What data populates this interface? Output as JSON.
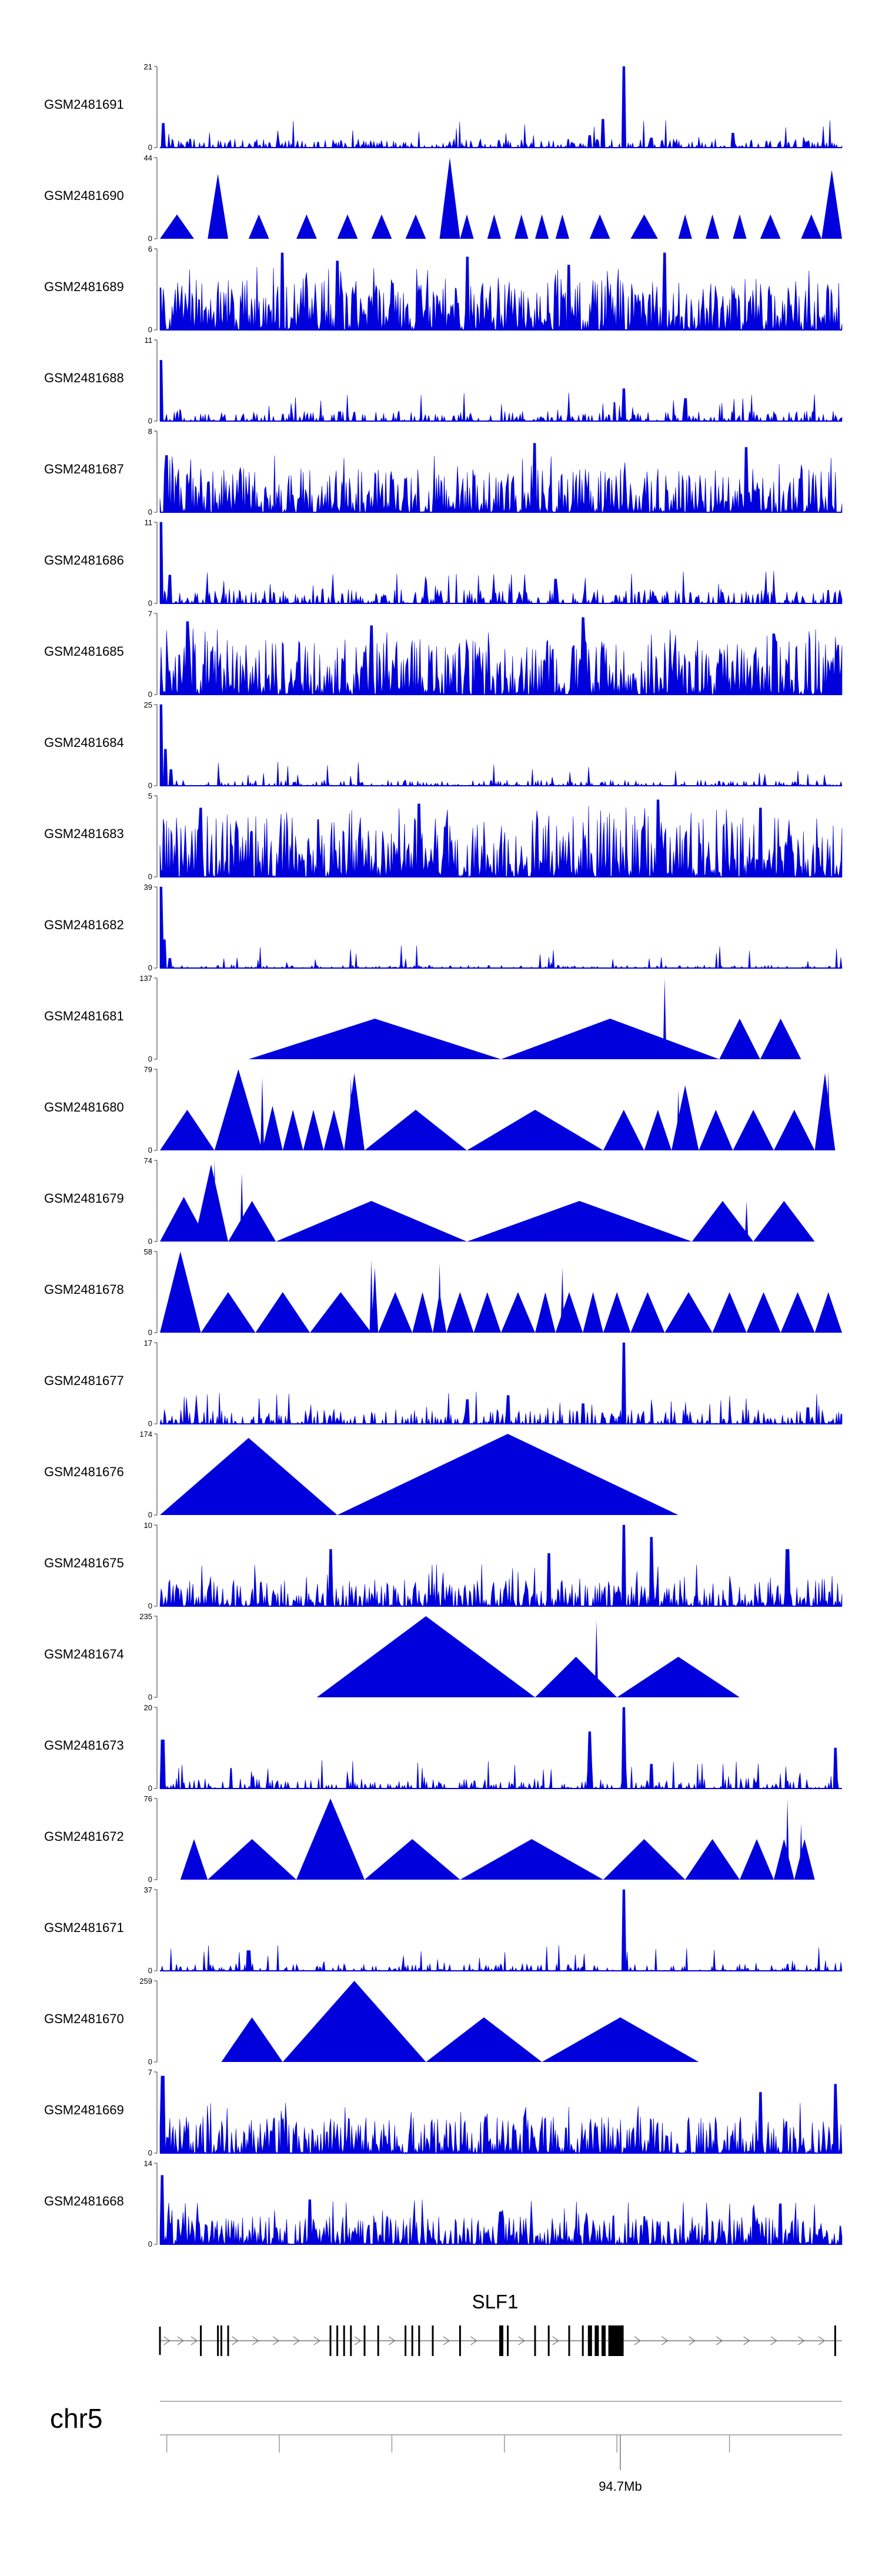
{
  "chart_data": {
    "type": "area",
    "title": "",
    "chromosome": "chr5",
    "gene": "SLF1",
    "axis_tick_label": "94.7Mb",
    "x_range": [
      0,
      1
    ],
    "fill_color": "#0000dd",
    "tracks": [
      {
        "name": "GSM2481691",
        "ymax": 21,
        "ymin": 0,
        "style": "dense",
        "seed": 11,
        "density": 0.55,
        "base": 0.06,
        "peaks": [
          [
            0.005,
            0.3
          ],
          [
            0.65,
            0.35
          ],
          [
            0.63,
            0.15
          ],
          [
            0.68,
            1.0
          ],
          [
            0.72,
            0.12
          ],
          [
            0.84,
            0.18
          ]
        ]
      },
      {
        "name": "GSM2481690",
        "ymax": 44,
        "ymin": 0,
        "style": "sparse",
        "seed": 12,
        "tri": [
          [
            0.0,
            0.05,
            0.3
          ],
          [
            0.07,
            0.1,
            0.8
          ],
          [
            0.13,
            0.16,
            0.3
          ],
          [
            0.2,
            0.23,
            0.3
          ],
          [
            0.26,
            0.29,
            0.3
          ],
          [
            0.31,
            0.34,
            0.3
          ],
          [
            0.36,
            0.39,
            0.3
          ],
          [
            0.41,
            0.44,
            1.0
          ],
          [
            0.44,
            0.46,
            0.3
          ],
          [
            0.48,
            0.5,
            0.3
          ],
          [
            0.52,
            0.54,
            0.3
          ],
          [
            0.55,
            0.57,
            0.3
          ],
          [
            0.58,
            0.6,
            0.3
          ],
          [
            0.63,
            0.66,
            0.3
          ],
          [
            0.69,
            0.73,
            0.3
          ],
          [
            0.76,
            0.78,
            0.3
          ],
          [
            0.8,
            0.82,
            0.3
          ],
          [
            0.84,
            0.86,
            0.3
          ],
          [
            0.88,
            0.91,
            0.3
          ],
          [
            0.94,
            0.97,
            0.3
          ],
          [
            0.97,
            1.0,
            0.85
          ]
        ]
      },
      {
        "name": "GSM2481689",
        "ymax": 6,
        "ymin": 0,
        "style": "dense",
        "seed": 13,
        "density": 0.9,
        "base": 0.35,
        "peaks": [
          [
            0.18,
            0.95
          ],
          [
            0.26,
            0.85
          ],
          [
            0.45,
            0.9
          ],
          [
            0.6,
            0.8
          ],
          [
            0.74,
            0.95
          ]
        ]
      },
      {
        "name": "GSM2481688",
        "ymax": 11,
        "ymin": 0,
        "style": "dense",
        "seed": 14,
        "density": 0.5,
        "base": 0.07,
        "peaks": [
          [
            0.002,
            0.75
          ],
          [
            0.68,
            0.4
          ],
          [
            0.77,
            0.28
          ]
        ]
      },
      {
        "name": "GSM2481687",
        "ymax": 8,
        "ymin": 0,
        "style": "dense",
        "seed": 15,
        "density": 0.85,
        "base": 0.3,
        "peaks": [
          [
            0.01,
            0.7
          ],
          [
            0.55,
            0.85
          ],
          [
            0.86,
            0.8
          ]
        ]
      },
      {
        "name": "GSM2481686",
        "ymax": 11,
        "ymin": 0,
        "style": "dense",
        "seed": 16,
        "density": 0.55,
        "base": 0.1,
        "peaks": [
          [
            0.002,
            1.0
          ],
          [
            0.015,
            0.35
          ],
          [
            0.58,
            0.3
          ]
        ]
      },
      {
        "name": "GSM2481685",
        "ymax": 7,
        "ymin": 0,
        "style": "dense",
        "seed": 17,
        "density": 0.9,
        "base": 0.38,
        "peaks": [
          [
            0.04,
            0.9
          ],
          [
            0.31,
            0.85
          ],
          [
            0.62,
            0.95
          ],
          [
            0.9,
            0.75
          ]
        ]
      },
      {
        "name": "GSM2481684",
        "ymax": 25,
        "ymin": 0,
        "style": "dense",
        "seed": 18,
        "density": 0.45,
        "base": 0.04,
        "peaks": [
          [
            0.002,
            1.0
          ],
          [
            0.008,
            0.45
          ],
          [
            0.016,
            0.2
          ]
        ]
      },
      {
        "name": "GSM2481683",
        "ymax": 5,
        "ymin": 0,
        "style": "dense",
        "seed": 19,
        "density": 0.9,
        "base": 0.42,
        "peaks": [
          [
            0.06,
            0.85
          ],
          [
            0.38,
            0.9
          ],
          [
            0.73,
            0.95
          ],
          [
            0.88,
            0.85
          ]
        ]
      },
      {
        "name": "GSM2481682",
        "ymax": 39,
        "ymin": 0,
        "style": "dense",
        "seed": 20,
        "density": 0.35,
        "base": 0.02,
        "peaks": [
          [
            0.002,
            1.0
          ],
          [
            0.007,
            0.35
          ],
          [
            0.014,
            0.12
          ]
        ]
      },
      {
        "name": "GSM2481681",
        "ymax": 137,
        "ymin": 0,
        "style": "sparse",
        "seed": 21,
        "tri": [
          [
            0.13,
            0.5,
            0.5
          ],
          [
            0.5,
            0.82,
            0.5
          ],
          [
            0.82,
            0.88,
            0.5
          ],
          [
            0.88,
            0.94,
            0.5
          ]
        ],
        "spikes": [
          [
            0.74,
            1.0
          ]
        ]
      },
      {
        "name": "GSM2481680",
        "ymax": 79,
        "ymin": 0,
        "style": "sparse",
        "seed": 22,
        "tri": [
          [
            0.0,
            0.08,
            0.5
          ],
          [
            0.08,
            0.15,
            1.0
          ],
          [
            0.15,
            0.18,
            0.55
          ],
          [
            0.18,
            0.21,
            0.5
          ],
          [
            0.21,
            0.24,
            0.5
          ],
          [
            0.24,
            0.27,
            0.5
          ],
          [
            0.27,
            0.3,
            0.95
          ],
          [
            0.3,
            0.45,
            0.5
          ],
          [
            0.45,
            0.65,
            0.5
          ],
          [
            0.65,
            0.71,
            0.5
          ],
          [
            0.71,
            0.75,
            0.5
          ],
          [
            0.75,
            0.79,
            0.8
          ],
          [
            0.79,
            0.84,
            0.5
          ],
          [
            0.84,
            0.9,
            0.5
          ],
          [
            0.9,
            0.96,
            0.5
          ],
          [
            0.96,
            0.99,
            0.95
          ]
        ],
        "spikes": [
          [
            0.15,
            0.9
          ],
          [
            0.28,
            0.9
          ],
          [
            0.76,
            0.75
          ],
          [
            0.98,
            0.98
          ]
        ]
      },
      {
        "name": "GSM2481679",
        "ymax": 74,
        "ymin": 0,
        "style": "sparse",
        "seed": 23,
        "tri": [
          [
            0.0,
            0.07,
            0.55
          ],
          [
            0.07,
            0.09,
            0.55
          ],
          [
            0.05,
            0.1,
            0.95
          ],
          [
            0.1,
            0.17,
            0.5
          ],
          [
            0.17,
            0.45,
            0.5
          ],
          [
            0.45,
            0.78,
            0.5
          ],
          [
            0.78,
            0.87,
            0.5
          ],
          [
            0.87,
            0.96,
            0.5
          ]
        ],
        "spikes": [
          [
            0.08,
            1.0
          ],
          [
            0.12,
            0.85
          ],
          [
            0.86,
            0.5
          ]
        ]
      },
      {
        "name": "GSM2481678",
        "ymax": 58,
        "ymin": 0,
        "style": "sparse",
        "seed": 24,
        "tri": [
          [
            0.0,
            0.06,
            1.0
          ],
          [
            0.06,
            0.14,
            0.5
          ],
          [
            0.14,
            0.22,
            0.5
          ],
          [
            0.22,
            0.31,
            0.5
          ],
          [
            0.31,
            0.32,
            0.8
          ],
          [
            0.32,
            0.37,
            0.5
          ],
          [
            0.37,
            0.4,
            0.5
          ],
          [
            0.4,
            0.42,
            0.5
          ],
          [
            0.42,
            0.46,
            0.5
          ],
          [
            0.46,
            0.5,
            0.5
          ],
          [
            0.5,
            0.55,
            0.5
          ],
          [
            0.55,
            0.58,
            0.5
          ],
          [
            0.58,
            0.62,
            0.5
          ],
          [
            0.62,
            0.65,
            0.5
          ],
          [
            0.65,
            0.69,
            0.5
          ],
          [
            0.69,
            0.74,
            0.5
          ],
          [
            0.74,
            0.81,
            0.5
          ],
          [
            0.81,
            0.86,
            0.5
          ],
          [
            0.86,
            0.91,
            0.5
          ],
          [
            0.91,
            0.96,
            0.5
          ],
          [
            0.96,
            1.0,
            0.5
          ]
        ],
        "spikes": [
          [
            0.31,
            0.9
          ],
          [
            0.41,
            0.85
          ],
          [
            0.59,
            0.8
          ]
        ]
      },
      {
        "name": "GSM2481677",
        "ymax": 17,
        "ymin": 0,
        "style": "dense",
        "seed": 25,
        "density": 0.5,
        "base": 0.1,
        "peaks": [
          [
            0.45,
            0.3
          ],
          [
            0.51,
            0.35
          ],
          [
            0.62,
            0.25
          ],
          [
            0.68,
            1.0
          ],
          [
            0.95,
            0.2
          ]
        ]
      },
      {
        "name": "GSM2481676",
        "ymax": 174,
        "ymin": 0,
        "style": "sparse",
        "seed": 26,
        "tri": [
          [
            0.0,
            0.26,
            0.95
          ],
          [
            0.26,
            0.76,
            1.0
          ]
        ]
      },
      {
        "name": "GSM2481675",
        "ymax": 10,
        "ymin": 0,
        "style": "dense",
        "seed": 27,
        "density": 0.75,
        "base": 0.18,
        "peaks": [
          [
            0.25,
            0.7
          ],
          [
            0.57,
            0.65
          ],
          [
            0.68,
            1.0
          ],
          [
            0.72,
            0.85
          ],
          [
            0.92,
            0.7
          ]
        ]
      },
      {
        "name": "GSM2481674",
        "ymax": 235,
        "ymin": 0,
        "style": "sparse",
        "seed": 28,
        "tri": [
          [
            0.23,
            0.55,
            1.0
          ],
          [
            0.55,
            0.67,
            0.5
          ],
          [
            0.67,
            0.85,
            0.5
          ]
        ],
        "spikes": [
          [
            0.64,
            0.95
          ]
        ]
      },
      {
        "name": "GSM2481673",
        "ymax": 20,
        "ymin": 0,
        "style": "dense",
        "seed": 29,
        "density": 0.45,
        "base": 0.07,
        "peaks": [
          [
            0.004,
            0.6
          ],
          [
            0.63,
            0.7
          ],
          [
            0.68,
            1.0
          ],
          [
            0.72,
            0.3
          ],
          [
            0.99,
            0.5
          ]
        ]
      },
      {
        "name": "GSM2481672",
        "ymax": 76,
        "ymin": 0,
        "style": "sparse",
        "seed": 30,
        "tri": [
          [
            0.03,
            0.07,
            0.5
          ],
          [
            0.07,
            0.2,
            0.5
          ],
          [
            0.2,
            0.3,
            1.0
          ],
          [
            0.3,
            0.44,
            0.5
          ],
          [
            0.44,
            0.65,
            0.5
          ],
          [
            0.65,
            0.77,
            0.5
          ],
          [
            0.77,
            0.85,
            0.5
          ],
          [
            0.85,
            0.9,
            0.5
          ],
          [
            0.9,
            0.93,
            0.5
          ],
          [
            0.93,
            0.96,
            0.5
          ]
        ],
        "spikes": [
          [
            0.92,
            1.0
          ],
          [
            0.94,
            0.7
          ]
        ]
      },
      {
        "name": "GSM2481671",
        "ymax": 37,
        "ymin": 0,
        "style": "dense",
        "seed": 31,
        "density": 0.4,
        "base": 0.05,
        "peaks": [
          [
            0.13,
            0.25
          ],
          [
            0.68,
            1.0
          ]
        ]
      },
      {
        "name": "GSM2481670",
        "ymax": 259,
        "ymin": 0,
        "style": "sparse",
        "seed": 32,
        "tri": [
          [
            0.09,
            0.18,
            0.55
          ],
          [
            0.18,
            0.39,
            1.0
          ],
          [
            0.39,
            0.56,
            0.55
          ],
          [
            0.56,
            0.79,
            0.55
          ]
        ]
      },
      {
        "name": "GSM2481669",
        "ymax": 7,
        "ymin": 0,
        "style": "dense",
        "seed": 33,
        "density": 0.8,
        "base": 0.25,
        "peaks": [
          [
            0.004,
            0.95
          ],
          [
            0.88,
            0.75
          ],
          [
            0.99,
            0.85
          ]
        ]
      },
      {
        "name": "GSM2481668",
        "ymax": 14,
        "ymin": 0,
        "style": "dense",
        "seed": 34,
        "density": 0.8,
        "base": 0.2,
        "peaks": [
          [
            0.003,
            0.85
          ],
          [
            0.22,
            0.55
          ],
          [
            0.5,
            0.4
          ],
          [
            0.91,
            0.5
          ]
        ]
      }
    ],
    "gene_model": {
      "exons": [
        0.06,
        0.085,
        0.09,
        0.1,
        0.25,
        0.26,
        0.27,
        0.28,
        0.3,
        0.32,
        0.36,
        0.37,
        0.38,
        0.4,
        0.44,
        0.5,
        0.51,
        0.55,
        0.57,
        0.6,
        0.62,
        0.63,
        0.67,
        0.99
      ],
      "thick_exons": [
        0.5,
        0.63,
        0.64,
        0.65,
        0.66
      ],
      "arrows": [
        0.01,
        0.03,
        0.05,
        0.11,
        0.14,
        0.17,
        0.2,
        0.23,
        0.29,
        0.34,
        0.42,
        0.46,
        0.53,
        0.58,
        0.7,
        0.74,
        0.78,
        0.82,
        0.86,
        0.9,
        0.94,
        0.97
      ]
    },
    "axis_ticks": [
      0.01,
      0.175,
      0.34,
      0.505,
      0.67,
      0.835
    ]
  }
}
